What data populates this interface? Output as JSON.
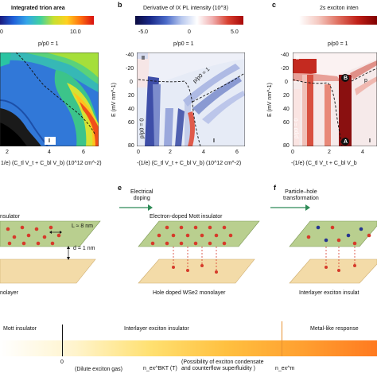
{
  "panel_a": {
    "colorbar_title": "Integrated trion area",
    "colorbar_ticks": [
      "0",
      "10.0"
    ],
    "ratio_label": "p/p0 = 1",
    "region_label": "I",
    "x_ticks": [
      "2",
      "4",
      "6"
    ],
    "xlabel": "1/e) (C_tl V_t + C_bl V_b) (10^12 cm^-2)"
  },
  "panel_b": {
    "letter": "b",
    "colorbar_title": "Derivative of IX PL intensity (10^3)",
    "colorbar_ticks": [
      "-5.0",
      "0",
      "5.0"
    ],
    "ratio_top": "p/p0 = 1",
    "ylabel": "E (mV nm^-1)",
    "y_ticks": [
      "-40",
      "-20",
      "0",
      "20",
      "40",
      "60",
      "80"
    ],
    "x_ticks": [
      "0",
      "2",
      "4",
      "6"
    ],
    "xlabel": "-(1/e) (C_tl V_t + C_bl V_b) (10^12 cm^-2)",
    "region_II": "II",
    "region_I": "I",
    "diag_label": "p/p0 = 1",
    "vert_label": "p/p0 = 0"
  },
  "panel_c": {
    "letter": "c",
    "colorbar_title": "2s exciton inten",
    "ratio_top": "p/p0 = 1",
    "ylabel": "E (mV nm^-1)",
    "y_ticks": [
      "-40",
      "-20",
      "0",
      "20",
      "40",
      "60",
      "80"
    ],
    "x_ticks": [
      "0",
      "2",
      "4"
    ],
    "xlabel": "-(1/e) (C_tl V_t + C_bl V_b",
    "region_II": "II",
    "region_I": "I",
    "point_A": "A",
    "point_B": "B",
    "vert_label": "p/p0 = 0",
    "diag_label": "p"
  },
  "panel_d": {
    "label_mott": "nsulator",
    "spacing": "L ≈ 8 nm",
    "distance": "d = 1 nm",
    "label_mono": "nolayer"
  },
  "panel_e": {
    "letter": "e",
    "arrow_label": "Electrical\ndoping",
    "top_label": "Electron-doped Mott insulator",
    "bottom_label": "Hole doped WSe2 monolayer"
  },
  "panel_f": {
    "letter": "f",
    "arrow_label": "Particle–hole\ntransformation",
    "bottom_label": "Interlayer exciton insulat"
  },
  "phase_bar": {
    "mott": "Mott insulator",
    "interlayer": "Interlayer exciton insulator",
    "metal": "Metal-like response",
    "zero": "0",
    "dilute": "(Dilute exciton gas)",
    "nbkt": "n_ex^BKT (T)",
    "possibility": "(Possibility of exciton condensate\nand counterflow superfluidity )",
    "nm": "n_ex^m"
  },
  "colors": {
    "green_layer": "#b9cf8f",
    "orange_layer": "#f3dba8",
    "electron_red": "#d63a2a",
    "hole_blue": "#26358f",
    "arrow_green": "#2e8b57"
  }
}
